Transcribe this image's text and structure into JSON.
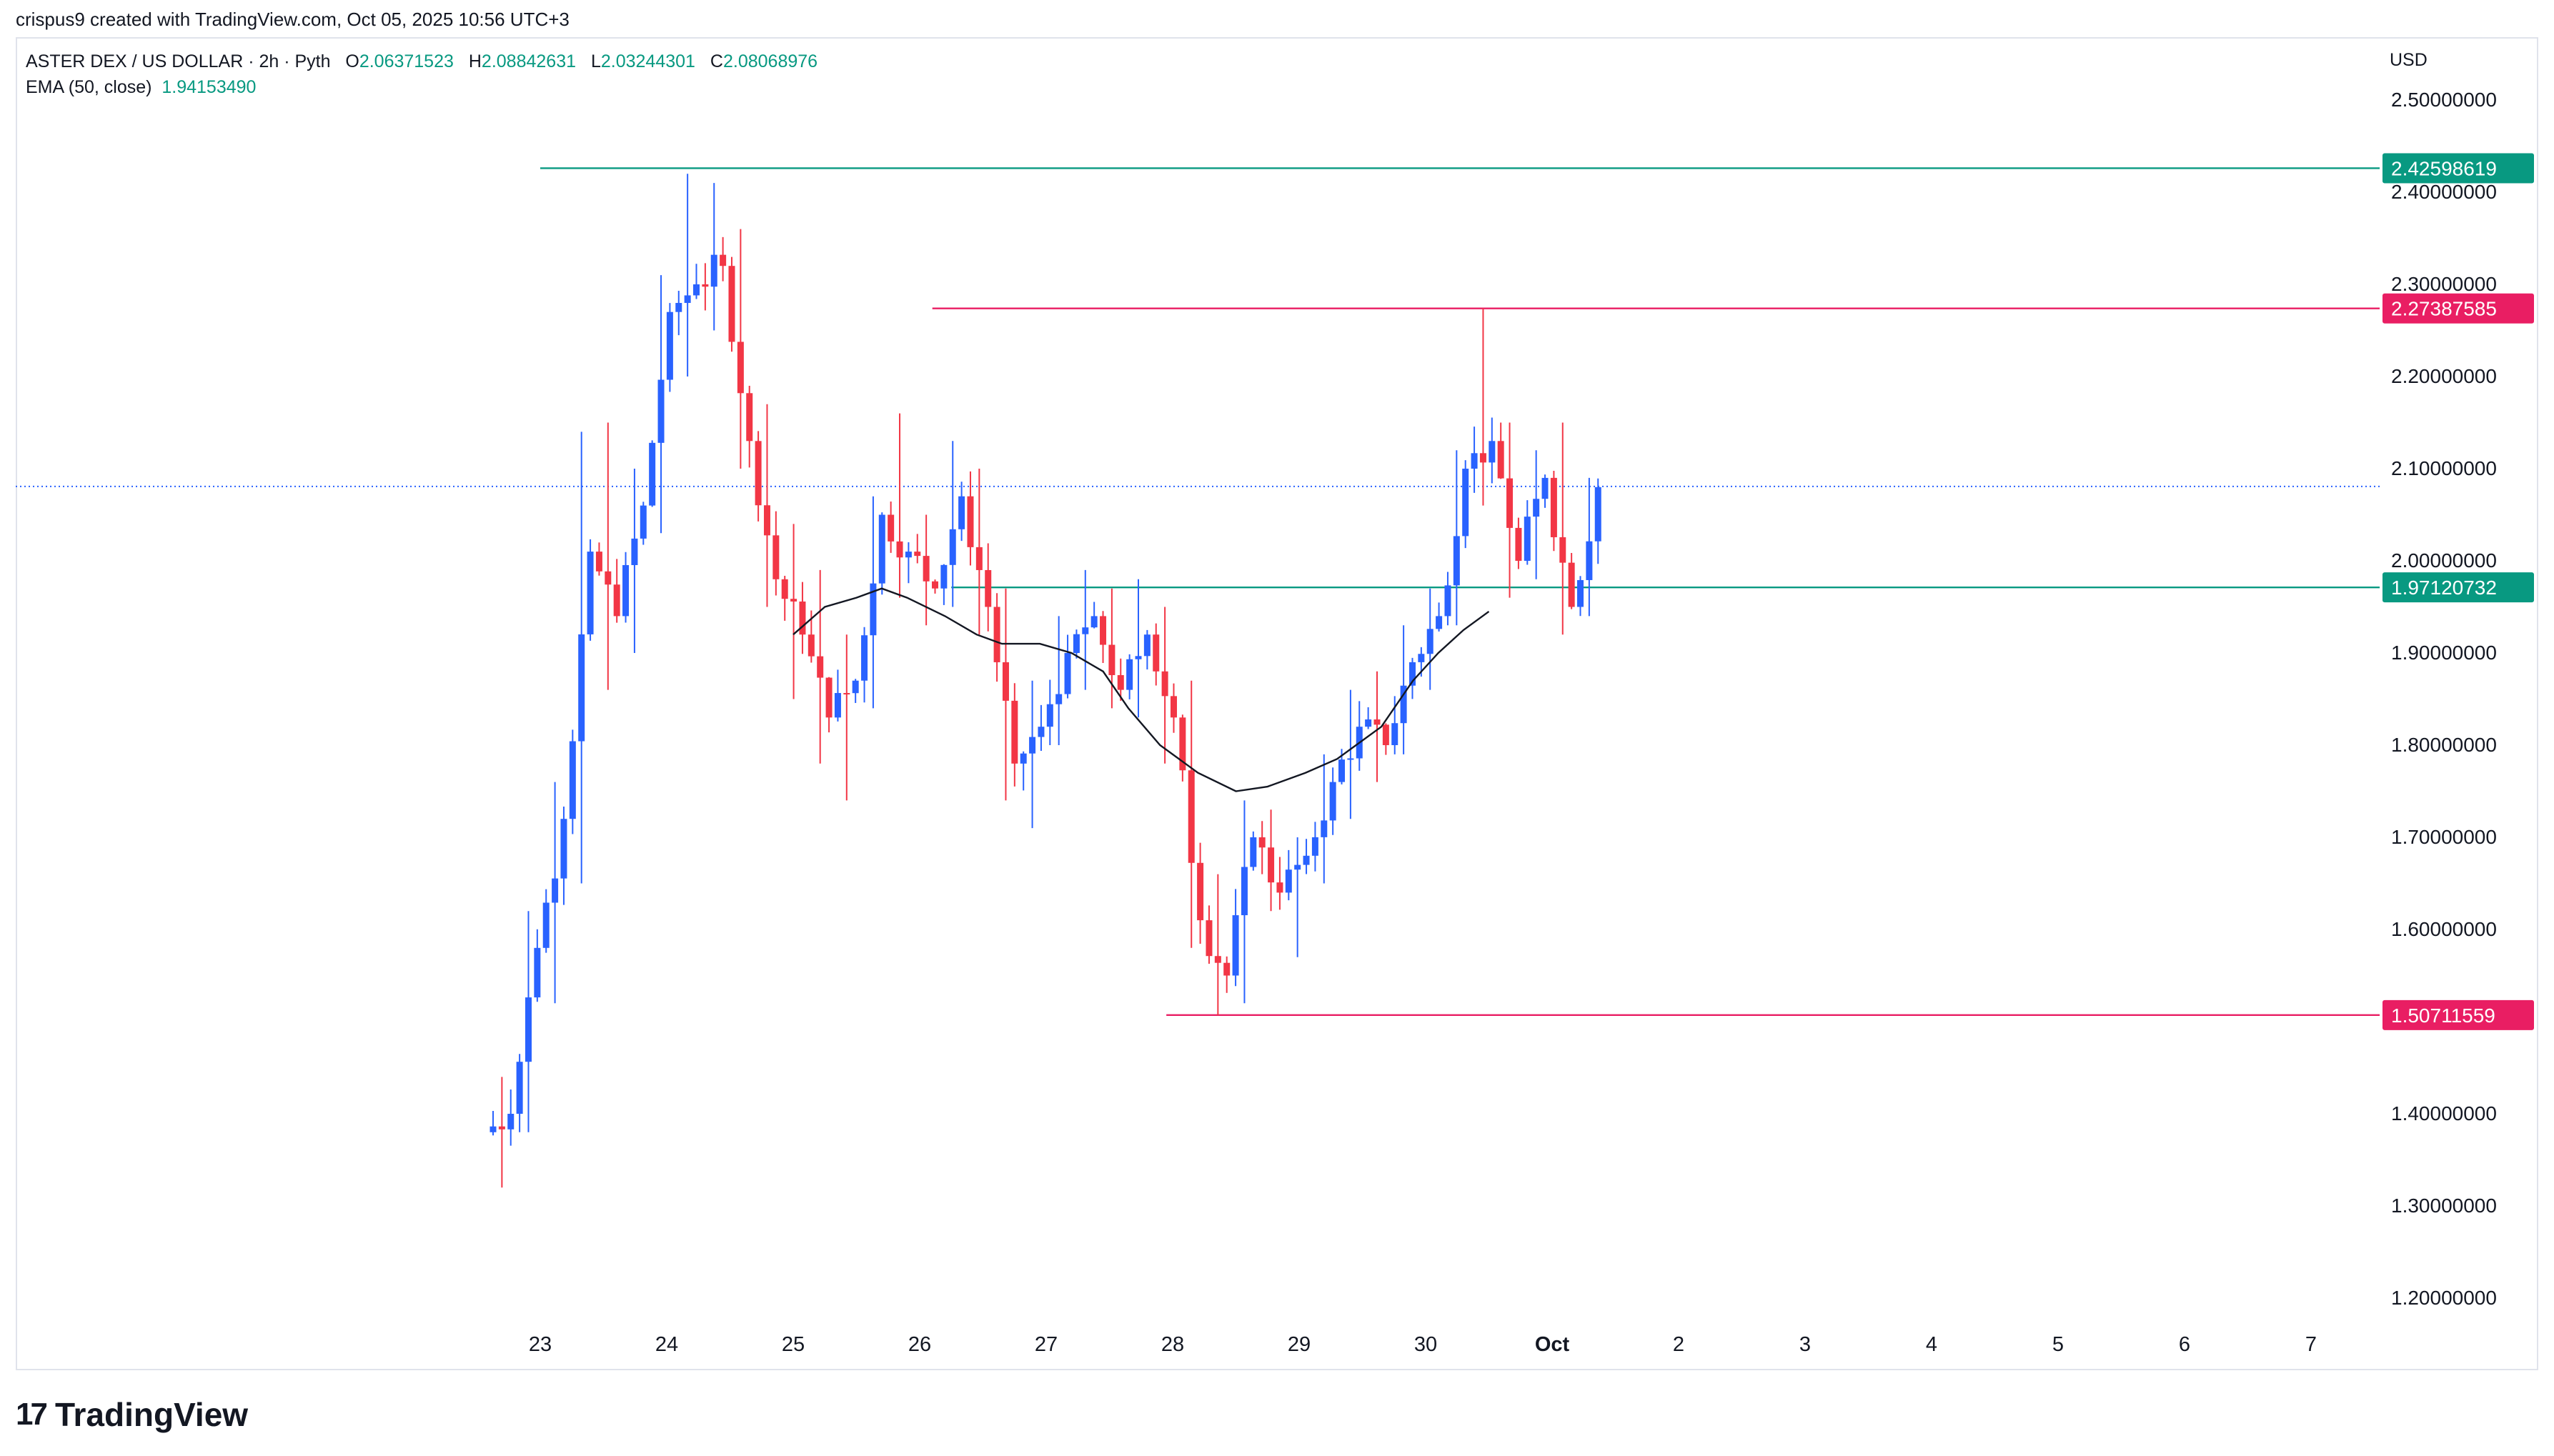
{
  "header": {
    "attribution": "crispus9 created with TradingView.com, Oct 05, 2025 10:56 UTC+3"
  },
  "legend": {
    "symbol": "ASTER DEX / US DOLLAR · 2h · Pyth",
    "o_label": "O",
    "o_value": "2.06371523",
    "h_label": "H",
    "h_value": "2.08842631",
    "l_label": "L",
    "l_value": "2.03244301",
    "c_label": "C",
    "c_value": "2.08068976",
    "ema_label": "EMA (50, close)",
    "ema_value": "1.94153490"
  },
  "currency": "USD",
  "logo": {
    "mark": "17",
    "text": "TradingView"
  },
  "colors": {
    "up": "#2962ff",
    "down": "#f23645",
    "support": "#089981",
    "resistance": "#e91e63",
    "ema": "#131722",
    "price_line": "#2962ff"
  },
  "chart_data": {
    "type": "candlestick",
    "x_tick_labels": [
      "23",
      "24",
      "25",
      "26",
      "27",
      "28",
      "29",
      "30",
      "Oct",
      "2",
      "3",
      "4",
      "5",
      "6",
      "7"
    ],
    "y_tick_labels": [
      "2.50000000",
      "2.40000000",
      "2.30000000",
      "2.20000000",
      "2.10000000",
      "2.00000000",
      "1.90000000",
      "1.80000000",
      "1.70000000",
      "1.60000000",
      "1.40000000",
      "1.30000000",
      "1.20000000"
    ],
    "ylim": [
      1.15,
      2.54
    ],
    "last_close": 2.08068976,
    "levels": [
      {
        "value": "2.42598619",
        "color": "#089981"
      },
      {
        "value": "2.27387585",
        "color": "#e91e63"
      },
      {
        "value": "1.97120732",
        "color": "#089981"
      },
      {
        "value": "1.50711559",
        "color": "#e91e63"
      }
    ],
    "ohlc_anchors": [
      [
        1.38,
        1.44,
        1.32,
        1.4
      ],
      [
        1.4,
        1.62,
        1.38,
        1.58
      ],
      [
        1.58,
        1.76,
        1.52,
        1.72
      ],
      [
        1.72,
        2.14,
        1.65,
        2.01
      ],
      [
        2.01,
        2.15,
        1.86,
        1.94
      ],
      [
        1.94,
        2.1,
        1.9,
        2.06
      ],
      [
        2.06,
        2.31,
        2.03,
        2.27
      ],
      [
        2.27,
        2.42,
        2.2,
        2.3
      ],
      [
        2.3,
        2.41,
        2.25,
        2.32
      ],
      [
        2.32,
        2.36,
        2.1,
        2.13
      ],
      [
        2.13,
        2.17,
        1.95,
        1.98
      ],
      [
        1.98,
        2.04,
        1.85,
        1.92
      ],
      [
        1.92,
        1.99,
        1.78,
        1.83
      ],
      [
        1.83,
        1.92,
        1.74,
        1.87
      ],
      [
        1.87,
        2.07,
        1.84,
        2.05
      ],
      [
        2.05,
        2.16,
        1.96,
        2.01
      ],
      [
        2.01,
        2.05,
        1.93,
        1.97
      ],
      [
        1.97,
        2.13,
        1.95,
        2.07
      ],
      [
        2.07,
        2.1,
        1.92,
        1.95
      ],
      [
        1.95,
        1.97,
        1.74,
        1.78
      ],
      [
        1.78,
        1.87,
        1.71,
        1.82
      ],
      [
        1.82,
        1.94,
        1.8,
        1.9
      ],
      [
        1.9,
        1.99,
        1.86,
        1.94
      ],
      [
        1.94,
        1.97,
        1.84,
        1.86
      ],
      [
        1.86,
        1.98,
        1.83,
        1.92
      ],
      [
        1.92,
        1.95,
        1.78,
        1.83
      ],
      [
        1.83,
        1.87,
        1.58,
        1.61
      ],
      [
        1.61,
        1.66,
        1.507,
        1.55
      ],
      [
        1.55,
        1.74,
        1.52,
        1.7
      ],
      [
        1.7,
        1.73,
        1.62,
        1.64
      ],
      [
        1.64,
        1.7,
        1.57,
        1.68
      ],
      [
        1.68,
        1.79,
        1.65,
        1.76
      ],
      [
        1.76,
        1.86,
        1.72,
        1.82
      ],
      [
        1.82,
        1.88,
        1.76,
        1.8
      ],
      [
        1.8,
        1.93,
        1.79,
        1.89
      ],
      [
        1.89,
        1.97,
        1.86,
        1.94
      ],
      [
        1.94,
        2.12,
        1.93,
        2.1
      ],
      [
        2.1,
        2.274,
        2.06,
        2.13
      ],
      [
        2.13,
        2.15,
        1.96,
        2.0
      ],
      [
        2.0,
        2.12,
        1.98,
        2.09
      ],
      [
        2.09,
        2.15,
        1.92,
        1.95
      ],
      [
        1.95,
        2.09,
        1.94,
        2.08
      ]
    ],
    "ema50": [
      [
        2.0,
        1.92
      ],
      [
        2.25,
        1.95
      ],
      [
        2.5,
        1.96
      ],
      [
        2.7,
        1.97
      ],
      [
        2.9,
        1.96
      ],
      [
        3.2,
        1.94
      ],
      [
        3.45,
        1.92
      ],
      [
        3.65,
        1.91
      ],
      [
        3.95,
        1.91
      ],
      [
        4.2,
        1.9
      ],
      [
        4.45,
        1.88
      ],
      [
        4.65,
        1.84
      ],
      [
        4.9,
        1.8
      ],
      [
        5.2,
        1.77
      ],
      [
        5.5,
        1.75
      ],
      [
        5.75,
        1.755
      ],
      [
        6.05,
        1.77
      ],
      [
        6.3,
        1.785
      ],
      [
        6.65,
        1.82
      ],
      [
        6.9,
        1.87
      ],
      [
        7.1,
        1.9
      ],
      [
        7.3,
        1.925
      ],
      [
        7.5,
        1.945
      ]
    ]
  }
}
